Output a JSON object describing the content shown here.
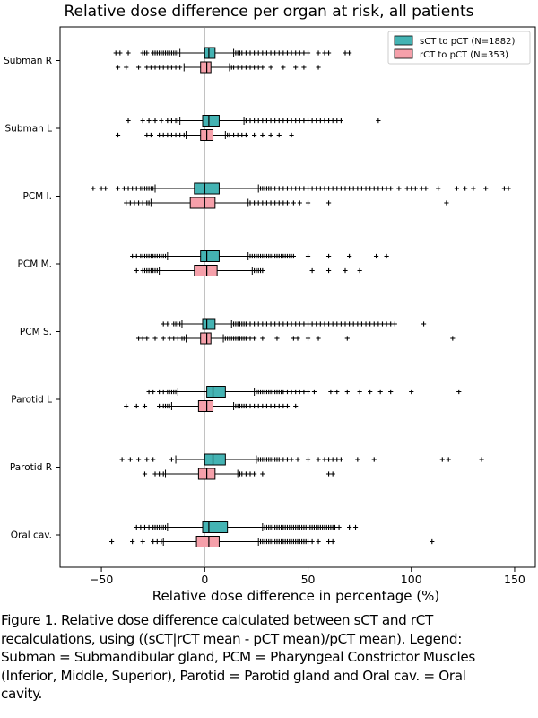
{
  "chart_data": {
    "type": "boxplot",
    "title": "Relative dose difference per organ at risk, all patients",
    "xlabel": "Relative dose difference in percentage (%)",
    "xlim": [
      -70,
      160
    ],
    "xticks": [
      -50,
      0,
      50,
      100,
      150
    ],
    "xtick_labels": [
      "−50",
      "0",
      "50",
      "100",
      "150"
    ],
    "legend_position": "top-right",
    "reference_line_x": 0,
    "series": [
      {
        "name": "sCT to pCT (N=1882)",
        "color": "#44b3b3"
      },
      {
        "name": "rCT to pCT (N=353)",
        "color": "#f5a0aa"
      }
    ],
    "categories": [
      {
        "label": "Subman R",
        "boxes": [
          {
            "whislo": -12,
            "q1": 0,
            "med": 2,
            "q3": 5,
            "whishi": 14,
            "fliers": [
              -43,
              -41,
              -37,
              -30,
              -29,
              -28,
              -25,
              -24,
              -23,
              -22,
              -21,
              -20,
              -19,
              -18,
              -17,
              -16,
              -15,
              -14,
              -13,
              15,
              16,
              17,
              18,
              20,
              22,
              24,
              26,
              28,
              30,
              32,
              34,
              36,
              38,
              40,
              42,
              44,
              46,
              48,
              50,
              55,
              58,
              60,
              68,
              70
            ]
          },
          {
            "whislo": -10,
            "q1": -2,
            "med": 1,
            "q3": 3,
            "whishi": 12,
            "fliers": [
              -42,
              -38,
              -32,
              -28,
              -26,
              -24,
              -22,
              -20,
              -18,
              -16,
              -14,
              -12,
              13,
              14,
              16,
              18,
              20,
              22,
              24,
              26,
              28,
              32,
              38,
              44,
              48,
              55
            ]
          }
        ]
      },
      {
        "label": "Subman L",
        "boxes": [
          {
            "whislo": -12,
            "q1": -1,
            "med": 2,
            "q3": 7,
            "whishi": 19,
            "fliers": [
              -37,
              -30,
              -27,
              -24,
              -21,
              -18,
              -16,
              -14,
              -13,
              20,
              22,
              24,
              26,
              28,
              30,
              32,
              34,
              36,
              38,
              40,
              42,
              44,
              46,
              48,
              50,
              52,
              54,
              56,
              58,
              60,
              62,
              64,
              66,
              84
            ]
          },
          {
            "whislo": -9,
            "q1": -2,
            "med": 1,
            "q3": 4,
            "whishi": 10,
            "fliers": [
              -42,
              -28,
              -26,
              -22,
              -20,
              -18,
              -16,
              -14,
              -12,
              -10,
              11,
              12,
              14,
              16,
              18,
              20,
              24,
              28,
              32,
              36,
              42
            ]
          }
        ]
      },
      {
        "label": "PCM I.",
        "boxes": [
          {
            "whislo": -24,
            "q1": -5,
            "med": 0,
            "q3": 7,
            "whishi": 26,
            "fliers": [
              -54,
              -50,
              -48,
              -42,
              -39,
              -37,
              -35,
              -33,
              -31,
              -30,
              -29,
              -28,
              -27,
              -26,
              -25,
              27,
              28,
              29,
              30,
              31,
              32,
              34,
              36,
              38,
              40,
              42,
              44,
              46,
              48,
              50,
              52,
              54,
              56,
              58,
              60,
              62,
              64,
              66,
              68,
              70,
              72,
              74,
              76,
              78,
              80,
              82,
              84,
              86,
              88,
              90,
              94,
              98,
              100,
              102,
              105,
              107,
              113,
              122,
              126,
              130,
              136,
              145,
              147
            ]
          },
          {
            "whislo": -26,
            "q1": -7,
            "med": 0,
            "q3": 5,
            "whishi": 21,
            "fliers": [
              -38,
              -36,
              -34,
              -32,
              -30,
              -28,
              -27,
              22,
              24,
              26,
              28,
              30,
              32,
              34,
              36,
              38,
              40,
              43,
              46,
              50,
              60,
              117
            ]
          }
        ]
      },
      {
        "label": "PCM M.",
        "boxes": [
          {
            "whislo": -18,
            "q1": -2,
            "med": 1,
            "q3": 7,
            "whishi": 21,
            "fliers": [
              -35,
              -33,
              -31,
              -30,
              -29,
              -28,
              -27,
              -26,
              -25,
              -24,
              -23,
              -22,
              -21,
              -20,
              -19,
              22,
              23,
              24,
              25,
              26,
              27,
              28,
              29,
              30,
              31,
              32,
              33,
              34,
              35,
              36,
              37,
              38,
              39,
              40,
              41,
              42,
              43,
              50,
              60,
              70,
              83,
              88
            ]
          },
          {
            "whislo": -22,
            "q1": -5,
            "med": 1,
            "q3": 6,
            "whishi": 23,
            "fliers": [
              -33,
              -30,
              -29,
              -28,
              -27,
              -26,
              -25,
              -24,
              -23,
              24,
              25,
              26,
              27,
              28,
              52,
              60,
              68,
              75
            ]
          }
        ]
      },
      {
        "label": "PCM S.",
        "boxes": [
          {
            "whislo": -11,
            "q1": -1,
            "med": 1,
            "q3": 5,
            "whishi": 13,
            "fliers": [
              -20,
              -18,
              -15,
              -14,
              -13,
              -12,
              14,
              15,
              16,
              17,
              18,
              19,
              20,
              22,
              24,
              26,
              28,
              30,
              32,
              34,
              36,
              38,
              40,
              42,
              44,
              46,
              48,
              50,
              52,
              54,
              56,
              58,
              60,
              62,
              64,
              66,
              68,
              70,
              72,
              74,
              76,
              78,
              80,
              82,
              84,
              86,
              88,
              90,
              92,
              106
            ]
          },
          {
            "whislo": -9,
            "q1": -2,
            "med": 1,
            "q3": 3,
            "whishi": 9,
            "fliers": [
              -32,
              -30,
              -28,
              -24,
              -20,
              -17,
              -15,
              -13,
              -11,
              -10,
              10,
              11,
              12,
              13,
              14,
              15,
              16,
              17,
              18,
              19,
              20,
              22,
              24,
              28,
              35,
              43,
              45,
              50,
              55,
              69,
              120
            ]
          }
        ]
      },
      {
        "label": "Parotid L",
        "boxes": [
          {
            "whislo": -13,
            "q1": 1,
            "med": 4,
            "q3": 10,
            "whishi": 24,
            "fliers": [
              -27,
              -25,
              -22,
              -20,
              -18,
              -17,
              -16,
              -15,
              -14,
              25,
              26,
              27,
              28,
              29,
              30,
              31,
              32,
              33,
              34,
              35,
              36,
              37,
              38,
              40,
              42,
              44,
              46,
              48,
              50,
              53,
              61,
              64,
              69,
              75,
              80,
              85,
              90,
              100,
              123
            ]
          },
          {
            "whislo": -16,
            "q1": -3,
            "med": 1,
            "q3": 4,
            "whishi": 14,
            "fliers": [
              -38,
              -33,
              -29,
              -22,
              -20,
              -19,
              -18,
              -17,
              15,
              16,
              17,
              18,
              19,
              20,
              22,
              24,
              26,
              28,
              30,
              32,
              34,
              36,
              38,
              40,
              44
            ]
          }
        ]
      },
      {
        "label": "Parotid R",
        "boxes": [
          {
            "whislo": -14,
            "q1": 0,
            "med": 4,
            "q3": 10,
            "whishi": 25,
            "fliers": [
              -40,
              -36,
              -32,
              -28,
              -25,
              -16,
              26,
              27,
              28,
              29,
              30,
              31,
              32,
              33,
              34,
              35,
              36,
              38,
              40,
              42,
              45,
              50,
              55,
              58,
              60,
              62,
              64,
              66,
              74,
              82,
              115,
              118,
              134
            ]
          },
          {
            "whislo": -19,
            "q1": -3,
            "med": 1,
            "q3": 5,
            "whishi": 16,
            "fliers": [
              -29,
              -24,
              -22,
              -20,
              17,
              18,
              20,
              22,
              24,
              28,
              60,
              62
            ]
          }
        ]
      },
      {
        "label": "Oral cav.",
        "boxes": [
          {
            "whislo": -18,
            "q1": -1,
            "med": 2,
            "q3": 11,
            "whishi": 28,
            "fliers": [
              -33,
              -31,
              -29,
              -27,
              -25,
              -24,
              -23,
              -22,
              -21,
              -20,
              -19,
              29,
              30,
              31,
              32,
              33,
              34,
              35,
              36,
              37,
              38,
              39,
              40,
              41,
              42,
              43,
              44,
              45,
              46,
              47,
              48,
              49,
              50,
              51,
              52,
              53,
              54,
              55,
              56,
              57,
              58,
              59,
              60,
              61,
              62,
              63,
              65,
              70,
              73
            ]
          },
          {
            "whislo": -20,
            "q1": -4,
            "med": 2,
            "q3": 7,
            "whishi": 26,
            "fliers": [
              -45,
              -35,
              -30,
              -25,
              -23,
              -21,
              27,
              28,
              29,
              30,
              31,
              32,
              33,
              34,
              35,
              36,
              37,
              38,
              39,
              40,
              41,
              42,
              43,
              44,
              45,
              46,
              47,
              48,
              49,
              50,
              52,
              55,
              60,
              62,
              110
            ]
          }
        ]
      }
    ]
  },
  "caption": {
    "lines": [
      "Figure 1. Relative dose difference calculated between sCT and rCT",
      "recalculations, using ((sCT|rCT mean - pCT mean)/pCT mean). Legend:",
      "Subman = Submandibular gland, PCM = Pharyngeal Constrictor Muscles",
      "(Inferior, Middle, Superior), Parotid = Parotid gland and Oral cav. = Oral",
      "cavity."
    ]
  }
}
